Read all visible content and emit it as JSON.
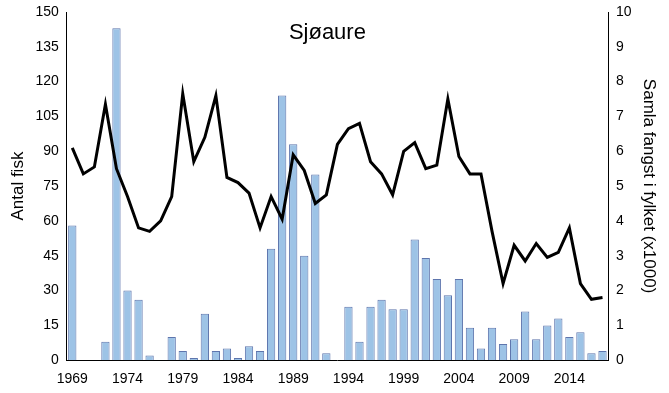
{
  "chart_data": {
    "type": "bar",
    "title": "Sjøaure",
    "y_label": "Antal fisk",
    "y2_label": "Samla fangst i fylket (x1000)",
    "categories": [
      "1969",
      null,
      null,
      null,
      null,
      "1974",
      null,
      null,
      null,
      null,
      "1979",
      null,
      null,
      null,
      null,
      "1984",
      null,
      null,
      null,
      null,
      "1989",
      null,
      null,
      null,
      null,
      "1994",
      null,
      null,
      null,
      null,
      "1999",
      null,
      null,
      null,
      null,
      "2004",
      null,
      null,
      null,
      null,
      "2009",
      null,
      null,
      null,
      null,
      "2014",
      null,
      null,
      null
    ],
    "series": [
      {
        "type": "bar",
        "color": "#9dc3e6",
        "axis": "y",
        "values": [
          58,
          0,
          0,
          8,
          143,
          30,
          26,
          2,
          0,
          10,
          4,
          1,
          20,
          4,
          5,
          1,
          6,
          4,
          48,
          114,
          93,
          45,
          80,
          3,
          0,
          23,
          8,
          23,
          26,
          22,
          22,
          52,
          44,
          35,
          28,
          35,
          14,
          5,
          14,
          7,
          9,
          21,
          9,
          15,
          18,
          10,
          12,
          3,
          4
        ]
      },
      {
        "type": "line",
        "color": "#000000",
        "axis": "y2",
        "marker": "none",
        "line_style": "solid",
        "values": [
          6.1,
          5.35,
          5.55,
          7.35,
          5.5,
          4.7,
          3.8,
          3.7,
          4.0,
          4.7,
          7.65,
          5.7,
          6.4,
          7.6,
          5.25,
          5.1,
          4.8,
          3.8,
          4.7,
          4.05,
          5.9,
          5.45,
          4.5,
          4.75,
          6.2,
          6.65,
          6.8,
          5.7,
          5.35,
          4.75,
          6.0,
          6.25,
          5.5,
          5.6,
          7.5,
          5.85,
          5.35,
          5.35,
          3.7,
          2.2,
          3.3,
          2.85,
          3.35,
          2.95,
          3.1,
          3.8,
          2.2,
          1.75,
          1.8
        ]
      }
    ],
    "ylim": [
      0,
      150
    ],
    "yticks": [
      0,
      15,
      30,
      45,
      60,
      75,
      90,
      105,
      120,
      135,
      150
    ],
    "y2lim": [
      0,
      10
    ],
    "y2ticks": [
      0,
      1,
      2,
      3,
      4,
      5,
      6,
      7,
      8,
      9,
      10
    ],
    "grid": false
  }
}
